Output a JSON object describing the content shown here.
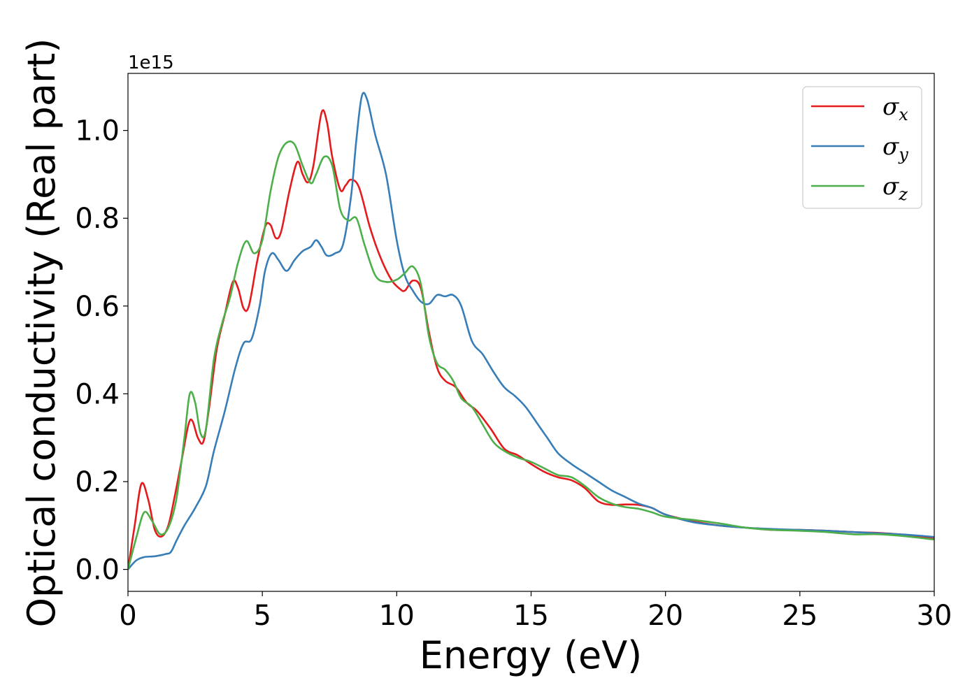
{
  "chart_data": {
    "type": "line",
    "title": "",
    "xlabel": "Energy (eV)",
    "ylabel": "Optical conductivity (Real part)",
    "y_offset_label": "1e15",
    "xlim": [
      0,
      30
    ],
    "ylim": [
      -0.05,
      1.13
    ],
    "x_ticks": [
      0,
      5,
      10,
      15,
      20,
      25,
      30
    ],
    "x_tick_labels": [
      "0",
      "5",
      "10",
      "15",
      "20",
      "25",
      "30"
    ],
    "y_ticks": [
      0.0,
      0.2,
      0.4,
      0.6,
      0.8,
      1.0
    ],
    "y_tick_labels": [
      "0.0",
      "0.2",
      "0.4",
      "0.6",
      "0.8",
      "1.0"
    ],
    "grid": false,
    "legend_position": "top-right",
    "series": [
      {
        "name": "σx",
        "legend_base": "σ",
        "legend_sub": "x",
        "color": "#e41a1c",
        "points": [
          [
            0,
            0.0
          ],
          [
            0.25,
            0.1
          ],
          [
            0.5,
            0.195
          ],
          [
            0.75,
            0.16
          ],
          [
            1.0,
            0.09
          ],
          [
            1.25,
            0.075
          ],
          [
            1.5,
            0.1
          ],
          [
            1.75,
            0.17
          ],
          [
            2.0,
            0.25
          ],
          [
            2.25,
            0.33
          ],
          [
            2.4,
            0.338
          ],
          [
            2.6,
            0.3
          ],
          [
            2.8,
            0.29
          ],
          [
            3.0,
            0.36
          ],
          [
            3.3,
            0.5
          ],
          [
            3.6,
            0.58
          ],
          [
            3.9,
            0.655
          ],
          [
            4.1,
            0.64
          ],
          [
            4.3,
            0.595
          ],
          [
            4.5,
            0.6
          ],
          [
            4.8,
            0.7
          ],
          [
            5.1,
            0.78
          ],
          [
            5.3,
            0.785
          ],
          [
            5.5,
            0.755
          ],
          [
            5.7,
            0.77
          ],
          [
            6.0,
            0.86
          ],
          [
            6.3,
            0.928
          ],
          [
            6.5,
            0.9
          ],
          [
            6.7,
            0.882
          ],
          [
            6.9,
            0.92
          ],
          [
            7.2,
            1.04
          ],
          [
            7.4,
            1.02
          ],
          [
            7.6,
            0.94
          ],
          [
            7.9,
            0.865
          ],
          [
            8.1,
            0.875
          ],
          [
            8.3,
            0.888
          ],
          [
            8.6,
            0.87
          ],
          [
            9.0,
            0.78
          ],
          [
            9.4,
            0.71
          ],
          [
            9.8,
            0.66
          ],
          [
            10.1,
            0.64
          ],
          [
            10.3,
            0.635
          ],
          [
            10.6,
            0.658
          ],
          [
            10.9,
            0.64
          ],
          [
            11.2,
            0.54
          ],
          [
            11.5,
            0.46
          ],
          [
            11.8,
            0.43
          ],
          [
            12.2,
            0.415
          ],
          [
            12.6,
            0.38
          ],
          [
            13.0,
            0.36
          ],
          [
            13.5,
            0.32
          ],
          [
            14.0,
            0.275
          ],
          [
            14.5,
            0.26
          ],
          [
            15.0,
            0.24
          ],
          [
            15.5,
            0.222
          ],
          [
            16.0,
            0.21
          ],
          [
            16.5,
            0.203
          ],
          [
            17.0,
            0.185
          ],
          [
            17.5,
            0.155
          ],
          [
            18.0,
            0.147
          ],
          [
            18.5,
            0.148
          ],
          [
            19.0,
            0.147
          ],
          [
            19.5,
            0.14
          ],
          [
            20.0,
            0.125
          ],
          [
            21.0,
            0.11
          ],
          [
            22.0,
            0.1
          ],
          [
            23.0,
            0.095
          ],
          [
            24.0,
            0.09
          ],
          [
            25.0,
            0.09
          ],
          [
            26.0,
            0.088
          ],
          [
            27.0,
            0.085
          ],
          [
            28.0,
            0.083
          ],
          [
            29.0,
            0.078
          ],
          [
            30.0,
            0.07
          ]
        ]
      },
      {
        "name": "σy",
        "legend_base": "σ",
        "legend_sub": "y",
        "color": "#377eb8",
        "points": [
          [
            0,
            0.0
          ],
          [
            0.3,
            0.02
          ],
          [
            0.6,
            0.028
          ],
          [
            1.0,
            0.03
          ],
          [
            1.4,
            0.035
          ],
          [
            1.6,
            0.04
          ],
          [
            1.8,
            0.065
          ],
          [
            2.1,
            0.1
          ],
          [
            2.5,
            0.14
          ],
          [
            2.9,
            0.19
          ],
          [
            3.2,
            0.27
          ],
          [
            3.6,
            0.36
          ],
          [
            4.0,
            0.46
          ],
          [
            4.3,
            0.515
          ],
          [
            4.6,
            0.525
          ],
          [
            4.9,
            0.6
          ],
          [
            5.1,
            0.68
          ],
          [
            5.35,
            0.72
          ],
          [
            5.6,
            0.705
          ],
          [
            5.9,
            0.68
          ],
          [
            6.2,
            0.705
          ],
          [
            6.5,
            0.725
          ],
          [
            6.8,
            0.735
          ],
          [
            7.0,
            0.75
          ],
          [
            7.2,
            0.735
          ],
          [
            7.4,
            0.715
          ],
          [
            7.7,
            0.72
          ],
          [
            8.0,
            0.74
          ],
          [
            8.3,
            0.85
          ],
          [
            8.5,
            0.98
          ],
          [
            8.7,
            1.078
          ],
          [
            8.9,
            1.07
          ],
          [
            9.2,
            0.99
          ],
          [
            9.6,
            0.9
          ],
          [
            10.0,
            0.75
          ],
          [
            10.3,
            0.67
          ],
          [
            10.6,
            0.635
          ],
          [
            10.9,
            0.61
          ],
          [
            11.2,
            0.605
          ],
          [
            11.5,
            0.625
          ],
          [
            11.8,
            0.622
          ],
          [
            12.1,
            0.625
          ],
          [
            12.4,
            0.6
          ],
          [
            12.8,
            0.52
          ],
          [
            13.2,
            0.49
          ],
          [
            13.6,
            0.45
          ],
          [
            14.0,
            0.415
          ],
          [
            14.4,
            0.395
          ],
          [
            14.8,
            0.37
          ],
          [
            15.2,
            0.335
          ],
          [
            15.6,
            0.3
          ],
          [
            16.0,
            0.265
          ],
          [
            16.5,
            0.24
          ],
          [
            17.0,
            0.22
          ],
          [
            17.5,
            0.2
          ],
          [
            18.0,
            0.18
          ],
          [
            18.5,
            0.165
          ],
          [
            19.0,
            0.15
          ],
          [
            19.5,
            0.14
          ],
          [
            20.0,
            0.125
          ],
          [
            21.0,
            0.108
          ],
          [
            22.0,
            0.1
          ],
          [
            23.0,
            0.095
          ],
          [
            24.0,
            0.092
          ],
          [
            25.0,
            0.09
          ],
          [
            26.0,
            0.088
          ],
          [
            27.0,
            0.085
          ],
          [
            28.0,
            0.082
          ],
          [
            29.0,
            0.079
          ],
          [
            30.0,
            0.074
          ]
        ]
      },
      {
        "name": "σz",
        "legend_base": "σ",
        "legend_sub": "z",
        "color": "#4daf4a",
        "points": [
          [
            0,
            0.0
          ],
          [
            0.3,
            0.07
          ],
          [
            0.6,
            0.13
          ],
          [
            0.9,
            0.11
          ],
          [
            1.2,
            0.08
          ],
          [
            1.5,
            0.095
          ],
          [
            1.8,
            0.16
          ],
          [
            2.1,
            0.3
          ],
          [
            2.3,
            0.4
          ],
          [
            2.5,
            0.38
          ],
          [
            2.7,
            0.31
          ],
          [
            2.9,
            0.32
          ],
          [
            3.2,
            0.48
          ],
          [
            3.5,
            0.56
          ],
          [
            3.8,
            0.62
          ],
          [
            4.1,
            0.7
          ],
          [
            4.4,
            0.748
          ],
          [
            4.7,
            0.72
          ],
          [
            5.0,
            0.75
          ],
          [
            5.3,
            0.86
          ],
          [
            5.6,
            0.94
          ],
          [
            5.9,
            0.972
          ],
          [
            6.2,
            0.968
          ],
          [
            6.5,
            0.92
          ],
          [
            6.8,
            0.88
          ],
          [
            7.0,
            0.9
          ],
          [
            7.3,
            0.94
          ],
          [
            7.6,
            0.92
          ],
          [
            7.9,
            0.82
          ],
          [
            8.2,
            0.795
          ],
          [
            8.5,
            0.8
          ],
          [
            8.8,
            0.74
          ],
          [
            9.2,
            0.67
          ],
          [
            9.6,
            0.655
          ],
          [
            10.0,
            0.66
          ],
          [
            10.3,
            0.675
          ],
          [
            10.6,
            0.69
          ],
          [
            10.9,
            0.65
          ],
          [
            11.2,
            0.53
          ],
          [
            11.5,
            0.47
          ],
          [
            11.8,
            0.455
          ],
          [
            12.1,
            0.43
          ],
          [
            12.4,
            0.39
          ],
          [
            12.8,
            0.37
          ],
          [
            13.2,
            0.33
          ],
          [
            13.6,
            0.29
          ],
          [
            14.0,
            0.27
          ],
          [
            14.5,
            0.255
          ],
          [
            15.0,
            0.245
          ],
          [
            15.5,
            0.23
          ],
          [
            16.0,
            0.215
          ],
          [
            16.5,
            0.21
          ],
          [
            17.0,
            0.19
          ],
          [
            17.5,
            0.165
          ],
          [
            18.0,
            0.15
          ],
          [
            18.5,
            0.142
          ],
          [
            19.0,
            0.138
          ],
          [
            19.5,
            0.13
          ],
          [
            20.0,
            0.12
          ],
          [
            21.0,
            0.113
          ],
          [
            22.0,
            0.105
          ],
          [
            23.0,
            0.095
          ],
          [
            24.0,
            0.09
          ],
          [
            25.0,
            0.088
          ],
          [
            26.0,
            0.085
          ],
          [
            27.0,
            0.08
          ],
          [
            28.0,
            0.08
          ],
          [
            29.0,
            0.075
          ],
          [
            30.0,
            0.068
          ]
        ]
      }
    ]
  }
}
